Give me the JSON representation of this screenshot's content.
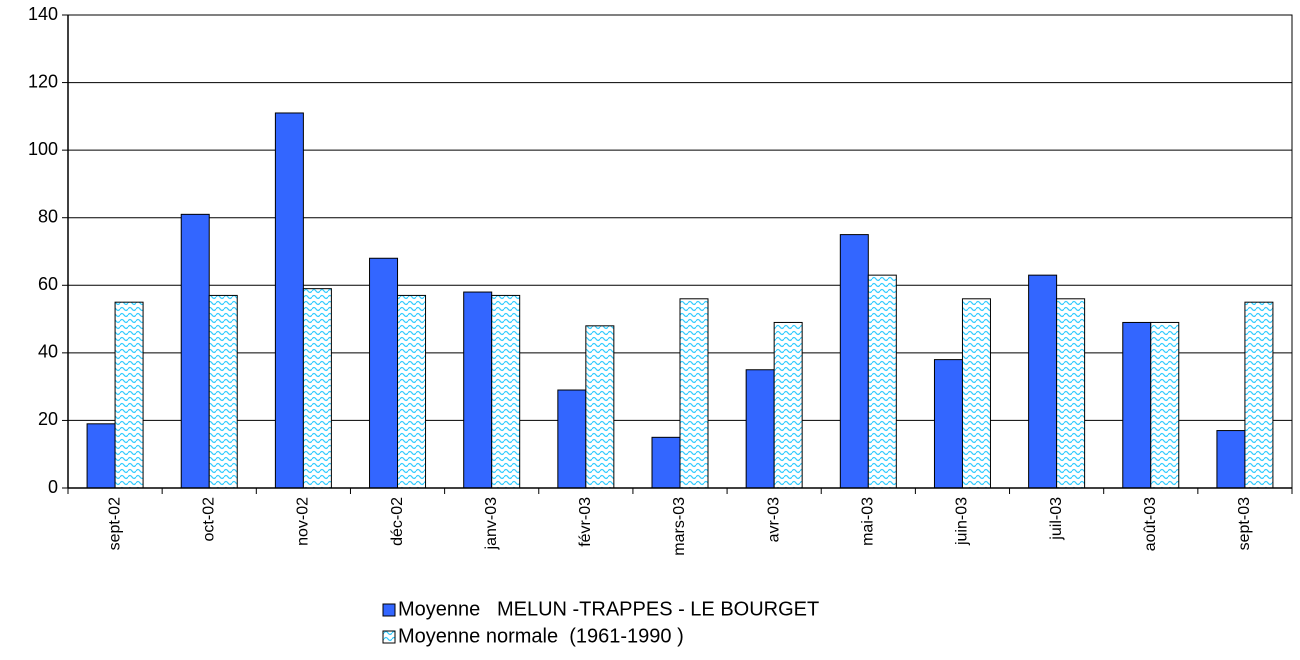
{
  "chart_data": {
    "type": "bar",
    "categories": [
      "sept-02",
      "oct-02",
      "nov-02",
      "déc-02",
      "janv-03",
      "févr-03",
      "mars-03",
      "avr-03",
      "mai-03",
      "juin-03",
      "juil-03",
      "août-03",
      "sept-03"
    ],
    "series": [
      {
        "name": "Moyenne   MELUN -TRAPPES - LE BOURGET",
        "color": "#3366ff",
        "values": [
          19,
          81,
          111,
          68,
          58,
          29,
          15,
          35,
          75,
          38,
          63,
          49,
          17
        ]
      },
      {
        "name": "Moyenne normale  (1961-1990 )",
        "color": "#33ccff",
        "values": [
          55,
          57,
          59,
          57,
          57,
          48,
          56,
          49,
          63,
          56,
          56,
          49,
          55
        ]
      }
    ],
    "ylim": [
      0,
      140
    ],
    "yticks": [
      0,
      20,
      40,
      60,
      80,
      100,
      120,
      140
    ],
    "grid": true,
    "legend": "bottom"
  }
}
